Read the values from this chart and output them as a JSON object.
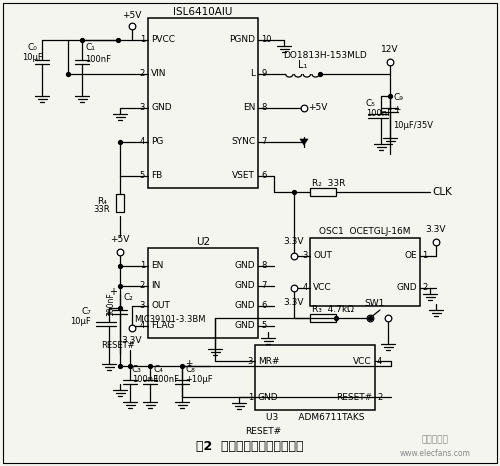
{
  "title": "图2  电源、复位和时钟原理图",
  "bg_color": "#f5f5f0",
  "watermark": "电子发烧友",
  "website": "www.elecfans.com"
}
